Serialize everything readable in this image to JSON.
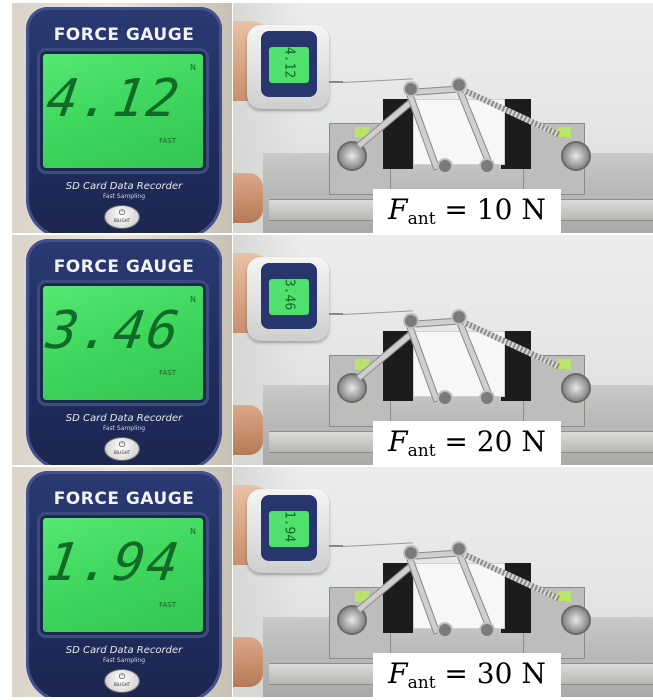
{
  "panels": [
    {
      "gauge": {
        "brand": "FORCE GAUGE",
        "reading": "4.12",
        "unit": "N",
        "mode": "FAST",
        "subtitle": "SD Card Data Recorder",
        "subtitle2": "Fast Sampling",
        "button_icon": "power-icon",
        "button_label": "B/LIGHT"
      },
      "label": {
        "var": "F",
        "sub": "ant",
        "rest": " = 10 N"
      }
    },
    {
      "gauge": {
        "brand": "FORCE GAUGE",
        "reading": "3.46",
        "unit": "N",
        "mode": "FAST",
        "subtitle": "SD Card Data Recorder",
        "subtitle2": "Fast Sampling",
        "button_icon": "power-icon",
        "button_label": "B/LIGHT"
      },
      "label": {
        "var": "F",
        "sub": "ant",
        "rest": " = 20 N"
      }
    },
    {
      "gauge": {
        "brand": "FORCE GAUGE",
        "reading": "1.94",
        "unit": "N",
        "mode": "FAST",
        "subtitle": "SD Card Data Recorder",
        "subtitle2": "Fast Sampling",
        "button_icon": "power-icon",
        "button_label": "B/LIGHT"
      },
      "label": {
        "var": "F",
        "sub": "ant",
        "rest": " = 30 N"
      }
    }
  ],
  "colors": {
    "lcd_green": "#3fd65d",
    "gauge_navy": "#1f2c5c",
    "label_bg": "#ffffff"
  }
}
